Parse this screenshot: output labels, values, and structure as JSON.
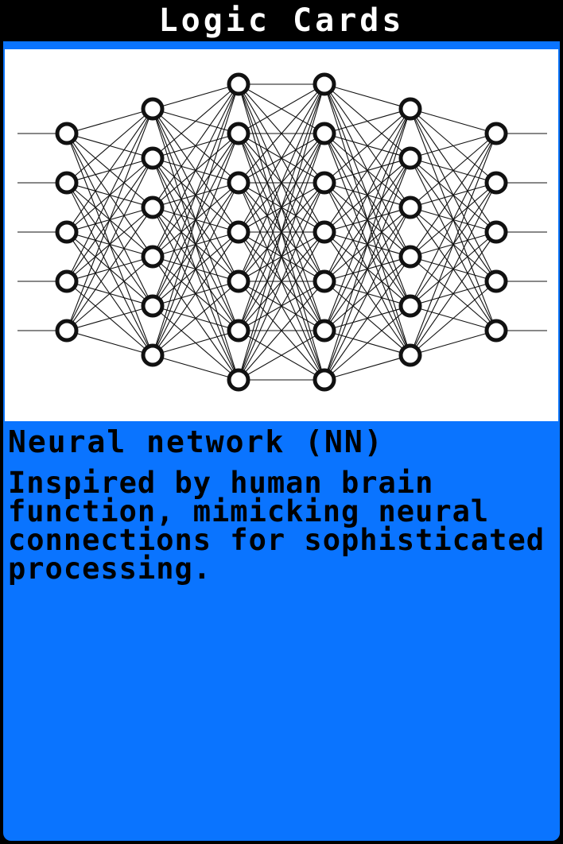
{
  "header": {
    "title": "Logic Cards"
  },
  "card": {
    "title": "Neural network (NN)",
    "description": "Inspired by human brain function, mimicking neural connections for sophisticated processing."
  },
  "illustration": {
    "icon": "neural-network-diagram-icon",
    "layer_node_counts": [
      5,
      6,
      7,
      7,
      6,
      5
    ],
    "inputs": 5,
    "outputs": 5
  },
  "colors": {
    "frame": "#000000",
    "body": "#0a74ff",
    "panel": "#ffffff",
    "ink": "#111111"
  }
}
